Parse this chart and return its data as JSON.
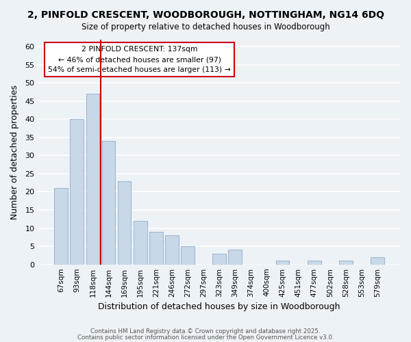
{
  "title": "2, PINFOLD CRESCENT, WOODBOROUGH, NOTTINGHAM, NG14 6DQ",
  "subtitle": "Size of property relative to detached houses in Woodborough",
  "bar_color": "#c8d8e8",
  "bar_edge_color": "#a0b8d0",
  "categories": [
    "67sqm",
    "93sqm",
    "118sqm",
    "144sqm",
    "169sqm",
    "195sqm",
    "221sqm",
    "246sqm",
    "272sqm",
    "297sqm",
    "323sqm",
    "349sqm",
    "374sqm",
    "400sqm",
    "425sqm",
    "451sqm",
    "477sqm",
    "502sqm",
    "528sqm",
    "553sqm",
    "579sqm"
  ],
  "values": [
    21,
    40,
    47,
    34,
    23,
    12,
    9,
    8,
    5,
    0,
    3,
    4,
    0,
    0,
    1,
    0,
    1,
    0,
    1,
    0,
    2
  ],
  "vline_pos": 2.5,
  "vline_color": "#cc0000",
  "xlabel": "Distribution of detached houses by size in Woodborough",
  "ylabel": "Number of detached properties",
  "ylim": [
    0,
    62
  ],
  "yticks": [
    0,
    5,
    10,
    15,
    20,
    25,
    30,
    35,
    40,
    45,
    50,
    55,
    60
  ],
  "annotation_title": "2 PINFOLD CRESCENT: 137sqm",
  "annotation_line1": "← 46% of detached houses are smaller (97)",
  "annotation_line2": "54% of semi-detached houses are larger (113) →",
  "annotation_box_color": "#ffffff",
  "annotation_box_edge": "#cc0000",
  "background_color": "#edf2f7",
  "grid_color": "#ffffff",
  "footer1": "Contains HM Land Registry data © Crown copyright and database right 2025.",
  "footer2": "Contains public sector information licensed under the Open Government Licence v3.0."
}
